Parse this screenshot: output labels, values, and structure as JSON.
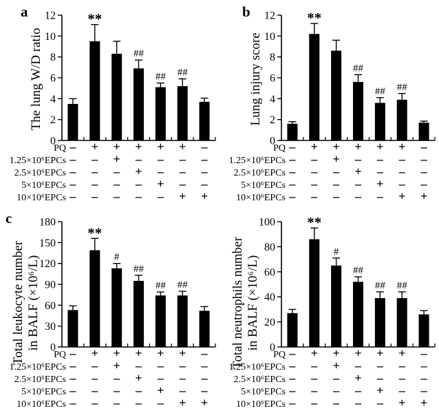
{
  "figure": {
    "background": "#ffffff",
    "ink_color": "#000000"
  },
  "chart_data": {
    "type": "bar",
    "bar_color": "#000000",
    "grid": false,
    "legend": "none",
    "x_axis": {
      "description": "treatment matrix shared by all four panels, one column per bar",
      "treatment_rows": [
        {
          "label": "PQ",
          "values": [
            "-",
            "+",
            "+",
            "+",
            "+",
            "+",
            "-"
          ]
        },
        {
          "label": "1.25×10⁶EPCs",
          "values": [
            "-",
            "-",
            "+",
            "-",
            "-",
            "-",
            "-"
          ]
        },
        {
          "label": "2.5×10⁶EPCs",
          "values": [
            "-",
            "-",
            "-",
            "+",
            "-",
            "-",
            "-"
          ]
        },
        {
          "label": "5×10⁶EPCs",
          "values": [
            "-",
            "-",
            "-",
            "-",
            "+",
            "-",
            "-"
          ]
        },
        {
          "label": "10×10⁶EPCs",
          "values": [
            "-",
            "-",
            "-",
            "-",
            "-",
            "+",
            "+"
          ]
        }
      ]
    },
    "panels": [
      {
        "panel_label": "a",
        "ylabel_lines": [
          "The lung W/D ratio"
        ],
        "ylim": [
          0,
          12
        ],
        "yticks": [
          0,
          2,
          4,
          6,
          8,
          10,
          12
        ],
        "values": [
          3.5,
          9.5,
          8.3,
          6.9,
          5.1,
          5.2,
          3.7
        ],
        "errors": [
          0.5,
          1.6,
          1.2,
          0.8,
          0.4,
          0.7,
          0.35
        ],
        "annotations": [
          "",
          "**",
          "",
          "##",
          "##",
          "##",
          ""
        ]
      },
      {
        "panel_label": "b",
        "ylabel_lines": [
          "Lung injury score"
        ],
        "ylim": [
          0,
          12
        ],
        "yticks": [
          0,
          2,
          4,
          6,
          8,
          10,
          12
        ],
        "values": [
          1.6,
          10.2,
          8.6,
          5.6,
          3.6,
          3.9,
          1.7
        ],
        "errors": [
          0.2,
          1.0,
          1.0,
          0.7,
          0.5,
          0.6,
          0.15
        ],
        "annotations": [
          "",
          "**",
          "",
          "##",
          "##",
          "##",
          ""
        ]
      },
      {
        "panel_label": "c",
        "ylabel_lines": [
          "Total leukocyte number",
          "in BALF (×10⁶/L)"
        ],
        "ylim": [
          0,
          180
        ],
        "yticks": [
          0,
          30,
          60,
          90,
          120,
          150,
          180
        ],
        "values": [
          53,
          139,
          113,
          95,
          74,
          74,
          52
        ],
        "errors": [
          6,
          17,
          7,
          8,
          5,
          6,
          6
        ],
        "annotations": [
          "",
          "**",
          "#",
          "##",
          "##",
          "##",
          ""
        ]
      },
      {
        "panel_label": "",
        "ylabel_lines": [
          "Total neutrophils number",
          "in BALF (×10⁶/L)"
        ],
        "ylim": [
          0,
          100
        ],
        "yticks": [
          0,
          20,
          40,
          60,
          80,
          100
        ],
        "values": [
          27,
          86,
          65,
          52,
          39,
          39,
          26
        ],
        "errors": [
          3,
          9,
          6,
          4,
          5,
          5,
          3
        ],
        "annotations": [
          "",
          "**",
          "#",
          "##",
          "##",
          "##",
          ""
        ]
      }
    ]
  }
}
